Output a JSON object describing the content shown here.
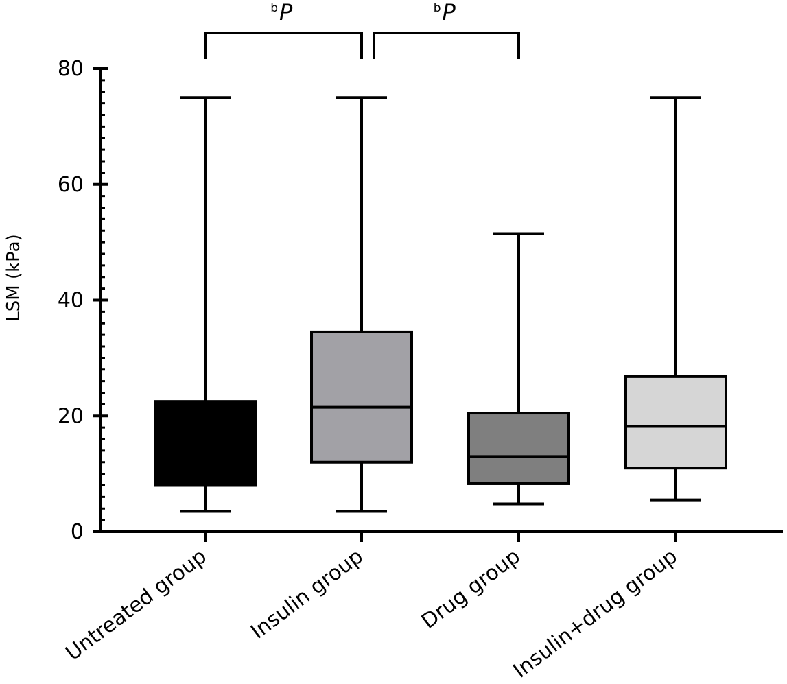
{
  "chart_data": {
    "type": "box",
    "ylabel": "LSM (kPa)",
    "ylim": [
      0,
      80
    ],
    "yticks": [
      0,
      20,
      40,
      60,
      80
    ],
    "categories": [
      "Untreated group",
      "Insulin group",
      "Drug group",
      "Insulin+drug group"
    ],
    "boxes": [
      {
        "category": "Untreated group",
        "min": 3.5,
        "q1": 8,
        "median": 14.5,
        "q3": 22.5,
        "max": 75,
        "color": "#000000"
      },
      {
        "category": "Insulin group",
        "min": 3.5,
        "q1": 12,
        "median": 21.5,
        "q3": 34.5,
        "max": 75,
        "color": "#a2a1a6"
      },
      {
        "category": "Drug group",
        "min": 4.8,
        "q1": 8.3,
        "median": 13,
        "q3": 20.5,
        "max": 51.5,
        "color": "#7f7f7f"
      },
      {
        "category": "Insulin+drug group",
        "min": 5.5,
        "q1": 11,
        "median": 18.2,
        "q3": 26.8,
        "max": 75,
        "color": "#d6d6d6"
      }
    ],
    "significance": [
      {
        "from": "Untreated group",
        "to": "Insulin group",
        "superscript": "b",
        "label": "P"
      },
      {
        "from": "Insulin group",
        "to": "Drug group",
        "superscript": "b",
        "label": "P"
      }
    ],
    "grid": false,
    "legend": "none"
  }
}
